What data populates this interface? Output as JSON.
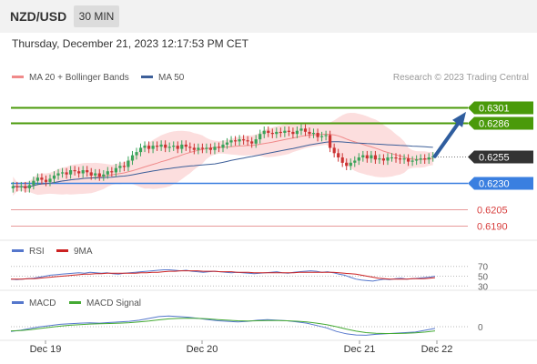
{
  "header": {
    "symbol": "NZD/USD",
    "timeframe": "30 MIN"
  },
  "datetime": "Thursday, December 21, 2023 12:17:53 PM CET",
  "legend": {
    "ma20_label": "MA 20 + Bollinger Bands",
    "ma50_label": "MA 50",
    "credit": "Research © 2023 Trading Central",
    "rsi_label": "RSI",
    "rsi_ma_label": "9MA",
    "macd_label": "MACD",
    "macd_signal_label": "MACD Signal"
  },
  "colors": {
    "resistance": "#4a9a0a",
    "support": "#3a7fe0",
    "pivot": "#333333",
    "target": "#d8403f",
    "bull_candle": "#3aa35a",
    "bear_candle": "#cc3333",
    "ma20": "#f08a8a",
    "ma50": "#3d5f99",
    "bollinger_fill": "#fbd3d3",
    "arrow": "#2f5d9e",
    "rsi": "#5577cc",
    "rsi_ma": "#cc2222",
    "macd": "#5577cc",
    "macd_signal": "#44aa33"
  },
  "chart_data": [
    {
      "type": "candlestick",
      "name": "price",
      "ylim": [
        0.6178,
        0.6318
      ],
      "x_ticks": [
        "Dec 19",
        "Dec 20",
        "Dec 21",
        "Dec 22"
      ],
      "close_prices": [
        0.6227,
        0.6226,
        0.6227,
        0.6225,
        0.6228,
        0.6232,
        0.6235,
        0.6233,
        0.6231,
        0.6234,
        0.6237,
        0.6239,
        0.624,
        0.6238,
        0.6242,
        0.6241,
        0.6239,
        0.6242,
        0.624,
        0.6237,
        0.6239,
        0.6236,
        0.6238,
        0.6241,
        0.624,
        0.6244,
        0.6246,
        0.6245,
        0.6251,
        0.6256,
        0.6259,
        0.6263,
        0.6265,
        0.6262,
        0.6265,
        0.6264,
        0.6266,
        0.6263,
        0.6264,
        0.6265,
        0.6262,
        0.6266,
        0.6264,
        0.6263,
        0.6261,
        0.6263,
        0.6262,
        0.6263,
        0.6261,
        0.6264,
        0.6263,
        0.6266,
        0.6268,
        0.627,
        0.6269,
        0.6271,
        0.627,
        0.6269,
        0.6267,
        0.6271,
        0.6276,
        0.6279,
        0.6277,
        0.6276,
        0.6278,
        0.6277,
        0.6279,
        0.6278,
        0.6276,
        0.6279,
        0.6281,
        0.6278,
        0.6276,
        0.6277,
        0.6273,
        0.6274,
        0.6275,
        0.6263,
        0.6258,
        0.6254,
        0.6249,
        0.6246,
        0.6249,
        0.6251,
        0.6254,
        0.6256,
        0.6253,
        0.6256,
        0.6252,
        0.6253,
        0.6251,
        0.6254,
        0.6254,
        0.6253,
        0.6252,
        0.6253,
        0.625,
        0.6251,
        0.6252,
        0.6253,
        0.6252,
        0.6254,
        0.6255
      ],
      "levels": [
        {
          "value": 0.6301,
          "label": "0.6301",
          "kind": "resistance"
        },
        {
          "value": 0.6286,
          "label": "0.6286",
          "kind": "resistance"
        },
        {
          "value": 0.6255,
          "label": "0.6255",
          "kind": "pivot"
        },
        {
          "value": 0.623,
          "label": "0.6230",
          "kind": "support"
        },
        {
          "value": 0.6205,
          "label": "0.6205",
          "kind": "target"
        },
        {
          "value": 0.619,
          "label": "0.6190",
          "kind": "target"
        }
      ]
    },
    {
      "type": "line",
      "name": "RSI",
      "ylim": [
        25,
        75
      ],
      "levels": [
        "70",
        "50",
        "30"
      ],
      "series": [
        {
          "name": "RSI",
          "values": [
            44,
            43,
            44,
            45,
            46,
            48,
            50,
            52,
            53,
            54,
            55,
            56,
            57,
            56,
            58,
            57,
            56,
            57,
            55,
            54,
            56,
            57,
            58,
            59,
            60,
            61,
            62,
            63,
            63,
            62,
            61,
            62,
            60,
            59,
            58,
            59,
            60,
            59,
            58,
            57,
            58,
            57,
            56,
            55,
            56,
            57,
            58,
            59,
            57,
            56,
            58,
            59,
            60,
            61,
            60,
            58,
            59,
            57,
            54,
            52,
            48,
            44,
            42,
            41,
            40,
            42,
            44,
            43,
            45,
            46,
            44,
            45,
            46,
            47,
            48,
            50
          ]
        },
        {
          "name": "9MA",
          "values": [
            44,
            44,
            44,
            45,
            45,
            46,
            47,
            48,
            49,
            50,
            51,
            52,
            53,
            54,
            54,
            55,
            55,
            56,
            56,
            56,
            56,
            56,
            56,
            57,
            57,
            58,
            58,
            59,
            60,
            60,
            61,
            61,
            61,
            61,
            60,
            60,
            60,
            59,
            59,
            59,
            58,
            58,
            58,
            57,
            57,
            57,
            57,
            57,
            57,
            57,
            57,
            58,
            58,
            58,
            58,
            58,
            58,
            58,
            57,
            56,
            55,
            54,
            52,
            50,
            48,
            46,
            45,
            44,
            44,
            44,
            44,
            45,
            45,
            45,
            46,
            47
          ]
        }
      ]
    },
    {
      "type": "line",
      "name": "MACD",
      "ylim": [
        -1,
        1
      ],
      "levels": [
        "0"
      ],
      "series": [
        {
          "name": "MACD",
          "values": [
            -0.4,
            -0.3,
            -0.15,
            0.0,
            0.1,
            0.2,
            0.25,
            0.3,
            0.32,
            0.3,
            0.35,
            0.4,
            0.45,
            0.55,
            0.7,
            0.85,
            0.9,
            0.85,
            0.8,
            0.7,
            0.6,
            0.5,
            0.45,
            0.4,
            0.45,
            0.55,
            0.6,
            0.55,
            0.5,
            0.4,
            0.3,
            0.1,
            -0.1,
            -0.4,
            -0.6,
            -0.7,
            -0.72,
            -0.65,
            -0.6,
            -0.55,
            -0.5,
            -0.45,
            -0.3,
            -0.15
          ]
        },
        {
          "name": "MACD Signal",
          "values": [
            -0.35,
            -0.32,
            -0.25,
            -0.15,
            -0.05,
            0.05,
            0.12,
            0.18,
            0.22,
            0.25,
            0.27,
            0.3,
            0.34,
            0.4,
            0.48,
            0.58,
            0.66,
            0.7,
            0.72,
            0.7,
            0.66,
            0.6,
            0.55,
            0.5,
            0.48,
            0.5,
            0.52,
            0.52,
            0.5,
            0.46,
            0.4,
            0.3,
            0.18,
            0.0,
            -0.2,
            -0.38,
            -0.5,
            -0.56,
            -0.58,
            -0.58,
            -0.56,
            -0.52,
            -0.45,
            -0.35
          ]
        }
      ]
    }
  ]
}
